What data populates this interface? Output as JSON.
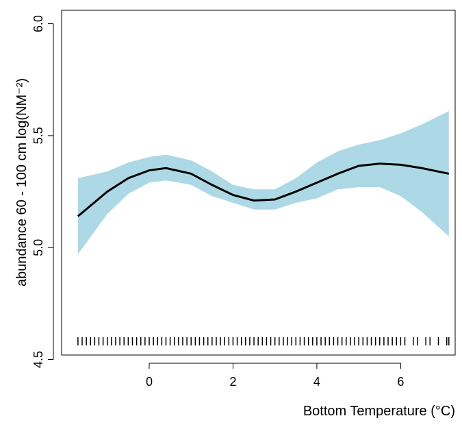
{
  "chart_data": {
    "type": "line",
    "x_label": "Bottom Temperature (°C)",
    "y_label": "abundance 60 - 100 cm log(NM⁻²)",
    "x": [
      -1.7,
      -1,
      -0.5,
      0,
      0.4,
      1,
      1.5,
      2,
      2.5,
      3,
      3.5,
      4,
      4.5,
      5,
      5.5,
      6,
      6.5,
      7.15
    ],
    "series": [
      {
        "color": "#000000",
        "values": [
          5.14,
          5.25,
          5.31,
          5.345,
          5.355,
          5.33,
          5.28,
          5.235,
          5.21,
          5.215,
          5.25,
          5.29,
          5.33,
          5.365,
          5.375,
          5.37,
          5.355,
          5.33
        ]
      }
    ],
    "band": {
      "color": "#add8e6",
      "upper": [
        5.31,
        5.34,
        5.38,
        5.405,
        5.415,
        5.39,
        5.34,
        5.28,
        5.26,
        5.26,
        5.31,
        5.38,
        5.43,
        5.46,
        5.48,
        5.51,
        5.55,
        5.61
      ],
      "lower": [
        4.97,
        5.15,
        5.24,
        5.29,
        5.3,
        5.28,
        5.23,
        5.2,
        5.17,
        5.17,
        5.2,
        5.22,
        5.26,
        5.27,
        5.27,
        5.23,
        5.16,
        5.05
      ]
    },
    "rug": [
      -1.7,
      -1.6,
      -1.5,
      -1.4,
      -1.3,
      -1.2,
      -1.1,
      -1.0,
      -0.9,
      -0.8,
      -0.7,
      -0.6,
      -0.5,
      -0.4,
      -0.3,
      -0.2,
      -0.1,
      0,
      0.1,
      0.2,
      0.3,
      0.4,
      0.5,
      0.6,
      0.7,
      0.8,
      0.9,
      1.0,
      1.1,
      1.2,
      1.3,
      1.4,
      1.5,
      1.6,
      1.7,
      1.8,
      1.9,
      2.0,
      2.1,
      2.2,
      2.3,
      2.4,
      2.5,
      2.6,
      2.7,
      2.8,
      2.9,
      3.0,
      3.1,
      3.2,
      3.3,
      3.4,
      3.5,
      3.6,
      3.7,
      3.8,
      3.9,
      4.0,
      4.1,
      4.2,
      4.3,
      4.4,
      4.5,
      4.6,
      4.7,
      4.8,
      4.9,
      5.0,
      5.1,
      5.2,
      5.3,
      5.4,
      5.5,
      5.6,
      5.7,
      5.8,
      5.9,
      6.0,
      6.1,
      6.3,
      6.4,
      6.6,
      6.7,
      6.9,
      7.1,
      7.15
    ],
    "xlim": [
      -2.09,
      7.3
    ],
    "ylim": [
      4.52,
      6.06
    ],
    "xticks": [
      0,
      2,
      4,
      6
    ],
    "yticks": [
      4.5,
      5.0,
      5.5,
      6.0
    ]
  }
}
